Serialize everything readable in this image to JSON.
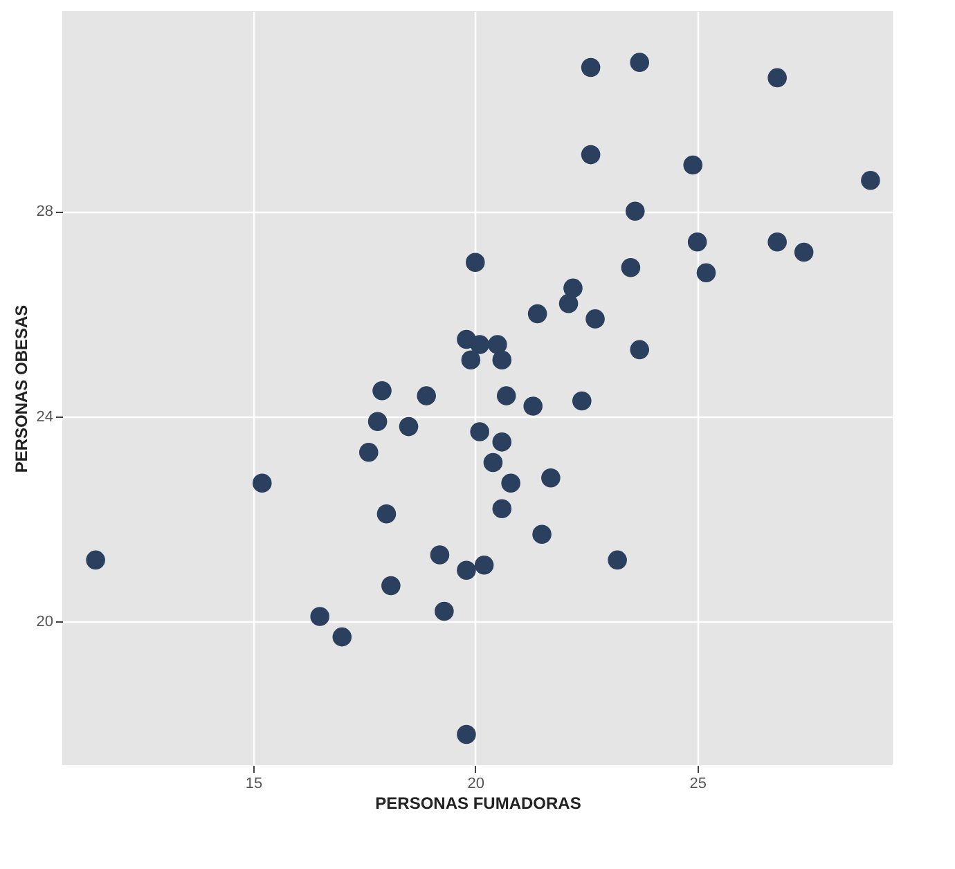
{
  "chart_data": {
    "type": "scatter",
    "xlabel": "PERSONAS FUMADORAS",
    "ylabel": "PERSONAS OBESAS",
    "x": [
      11.45,
      15.2,
      16.5,
      17.0,
      17.6,
      17.8,
      17.9,
      18.0,
      18.1,
      18.5,
      18.9,
      19.2,
      19.3,
      19.8,
      19.8,
      19.8,
      19.9,
      20.0,
      20.1,
      20.2,
      20.1,
      20.4,
      20.5,
      20.6,
      20.6,
      20.6,
      20.7,
      20.8,
      21.3,
      21.4,
      21.5,
      21.7,
      22.1,
      22.2,
      22.4,
      22.6,
      22.7,
      22.6,
      23.2,
      23.5,
      23.6,
      23.7,
      23.7,
      24.9,
      25.0,
      25.2,
      26.8,
      26.8,
      27.4,
      28.9
    ],
    "series": [
      {
        "color": "#2b3f5e",
        "values": [
          21.2,
          22.7,
          20.1,
          19.7,
          23.3,
          23.9,
          24.5,
          22.1,
          20.7,
          23.8,
          24.4,
          21.3,
          20.2,
          25.5,
          21.0,
          17.8,
          25.1,
          27.0,
          23.7,
          21.1,
          25.4,
          23.1,
          25.4,
          22.2,
          23.5,
          25.1,
          24.4,
          22.7,
          24.2,
          26.0,
          21.7,
          22.8,
          26.2,
          26.5,
          24.3,
          29.1,
          25.9,
          30.8,
          21.2,
          26.9,
          28.0,
          30.9,
          25.3,
          28.9,
          27.4,
          26.8,
          30.6,
          27.4,
          27.2,
          28.6
        ]
      }
    ],
    "xlim": [
      10.7,
      29.4
    ],
    "ylim": [
      17.2,
      31.9
    ],
    "xticks": [
      15,
      20,
      25
    ],
    "yticks": [
      20,
      24,
      28
    ],
    "grid": true,
    "marker": "circle"
  }
}
